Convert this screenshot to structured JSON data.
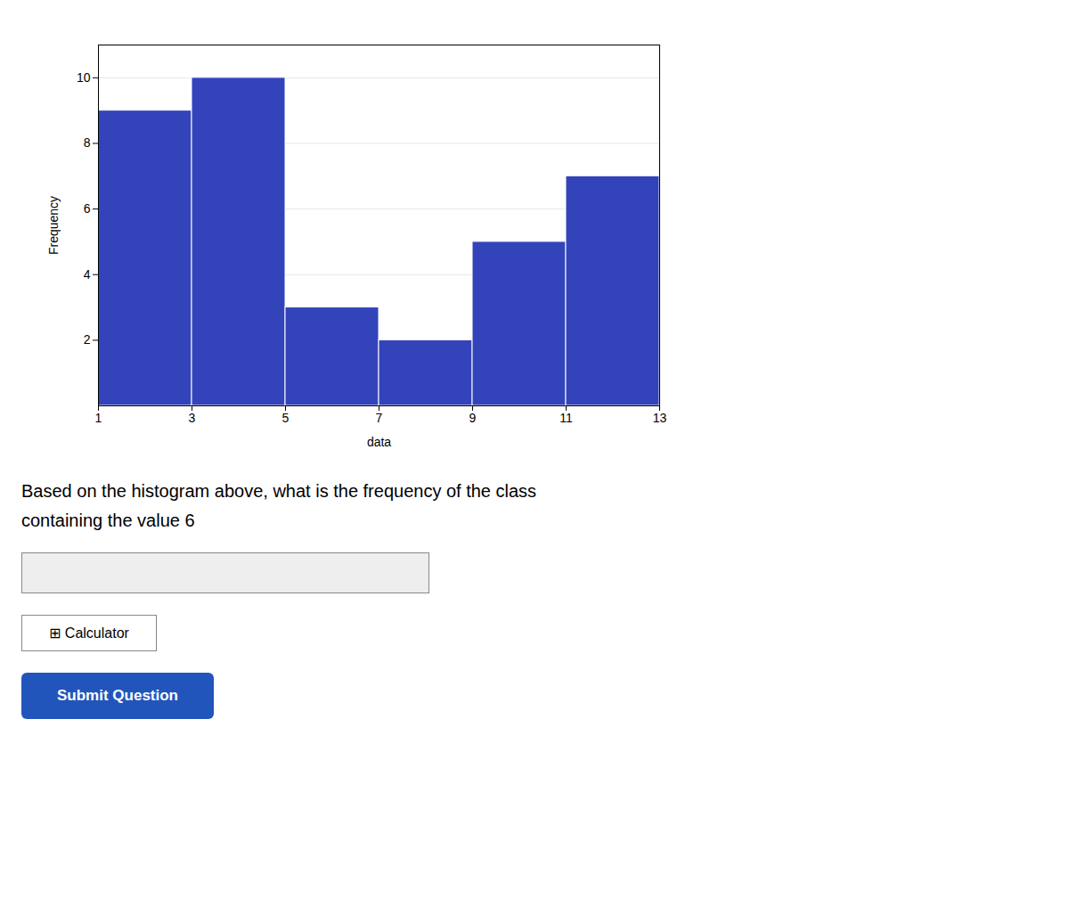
{
  "chart_data": {
    "type": "histogram",
    "bins": [
      1,
      3,
      5,
      7,
      9,
      11,
      13
    ],
    "values": [
      9,
      10,
      3,
      2,
      5,
      7
    ],
    "color": "#3344BB",
    "x_label": "data",
    "y_label": "Frequency",
    "xlim": [
      1,
      13
    ],
    "ylim": [
      0,
      11
    ],
    "xticks": [
      1,
      3,
      5,
      7,
      9,
      11,
      13
    ],
    "yticks": [
      2,
      4,
      6,
      8,
      10
    ],
    "grid": "y",
    "annotations": [
      "Based on the histogram above, what is the frequency of the class",
      "containing the value 6",
      "⊞ Calculator",
      "Submit Question"
    ]
  }
}
